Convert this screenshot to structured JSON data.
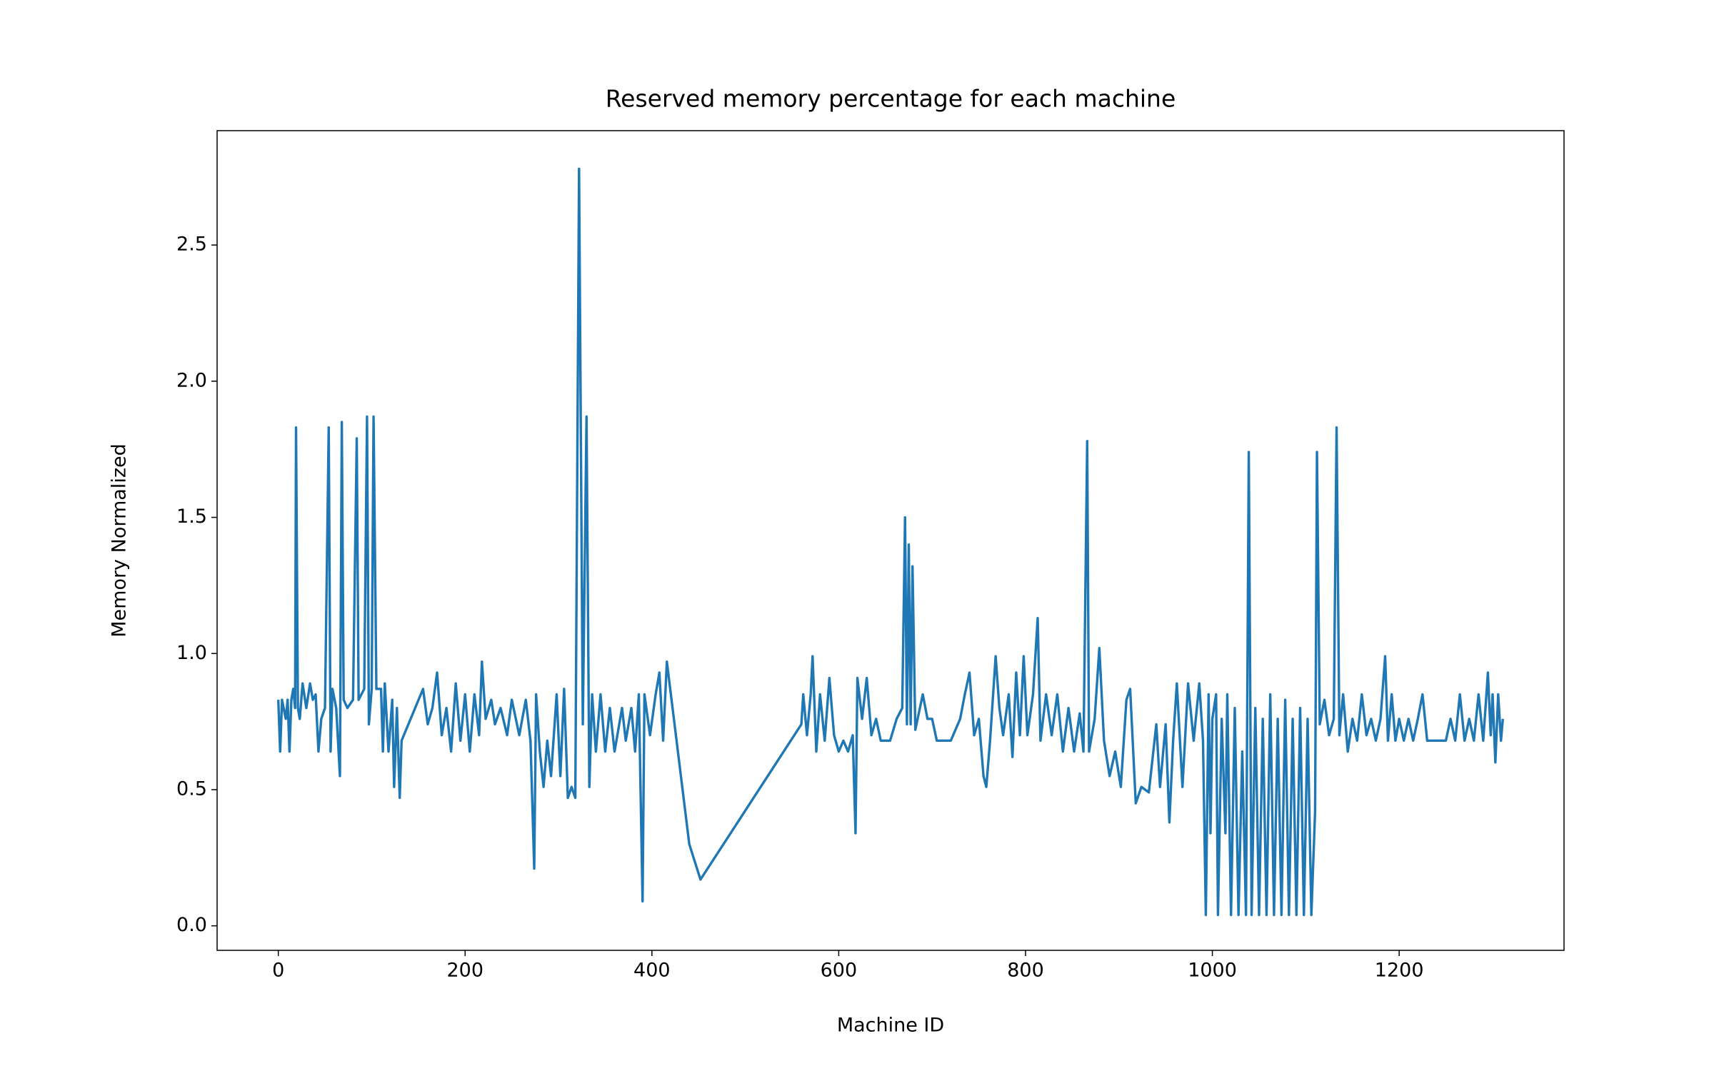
{
  "chart_data": {
    "type": "line",
    "title": "Reserved memory percentage for each machine",
    "x_label": "Machine ID",
    "y_label": "Memory Normalized",
    "color": "#1f77b4",
    "grid": false,
    "xlim": [
      -65.5,
      1376.5
    ],
    "ylim": [
      -0.09,
      2.92
    ],
    "xticks": [
      0,
      200,
      400,
      600,
      800,
      1000,
      1200
    ],
    "yticks": [
      {
        "value": 0,
        "label": "0.0"
      },
      0.5,
      {
        "value": 1,
        "label": "1.0"
      },
      1.5,
      {
        "value": 2,
        "label": "2.0"
      },
      2.5
    ],
    "x": [
      0,
      2,
      4,
      8,
      10,
      12,
      14,
      16,
      18,
      19,
      21,
      23,
      26,
      30,
      34,
      37,
      40,
      43,
      46,
      50,
      54,
      56,
      58,
      62,
      66,
      68,
      70,
      74,
      80,
      84,
      86,
      92,
      95,
      97,
      100,
      102,
      105,
      110,
      112,
      114,
      118,
      122,
      124,
      127,
      130,
      132,
      155,
      160,
      165,
      170,
      175,
      180,
      185,
      190,
      195,
      200,
      205,
      210,
      215,
      218,
      222,
      228,
      232,
      238,
      245,
      250,
      258,
      265,
      270,
      274,
      276,
      280,
      284,
      288,
      292,
      298,
      302,
      306,
      310,
      314,
      318,
      322,
      326,
      330,
      333,
      336,
      340,
      345,
      350,
      355,
      360,
      368,
      372,
      378,
      382,
      386,
      390,
      392,
      398,
      404,
      408,
      412,
      416,
      440,
      452,
      560,
      562,
      566,
      570,
      572,
      576,
      580,
      585,
      590,
      595,
      600,
      605,
      610,
      615,
      618,
      620,
      625,
      630,
      635,
      640,
      645,
      655,
      662,
      668,
      671,
      673,
      675,
      677,
      679,
      682,
      690,
      695,
      700,
      705,
      720,
      730,
      735,
      740,
      745,
      750,
      755,
      758,
      762,
      768,
      772,
      776,
      782,
      786,
      790,
      794,
      798,
      802,
      808,
      813,
      816,
      822,
      828,
      834,
      840,
      846,
      852,
      858,
      862,
      866,
      868,
      874,
      879,
      884,
      890,
      896,
      902,
      908,
      912,
      918,
      924,
      932,
      940,
      944,
      950,
      954,
      958,
      962,
      968,
      974,
      980,
      986,
      990,
      993,
      996,
      998,
      1000,
      1004,
      1006,
      1010,
      1014,
      1016,
      1020,
      1024,
      1028,
      1032,
      1036,
      1039,
      1042,
      1046,
      1050,
      1054,
      1058,
      1062,
      1066,
      1070,
      1074,
      1078,
      1082,
      1086,
      1090,
      1094,
      1098,
      1102,
      1106,
      1110,
      1112,
      1115,
      1120,
      1125,
      1130,
      1133,
      1136,
      1140,
      1145,
      1150,
      1155,
      1160,
      1165,
      1170,
      1175,
      1180,
      1185,
      1188,
      1192,
      1196,
      1200,
      1205,
      1210,
      1215,
      1220,
      1225,
      1230,
      1240,
      1250,
      1255,
      1260,
      1265,
      1270,
      1275,
      1280,
      1285,
      1290,
      1295,
      1298,
      1300,
      1303,
      1306,
      1309,
      1311
    ],
    "values": [
      0.83,
      0.64,
      0.83,
      0.76,
      0.83,
      0.64,
      0.83,
      0.87,
      0.8,
      1.83,
      0.8,
      0.76,
      0.89,
      0.8,
      0.89,
      0.83,
      0.85,
      0.64,
      0.76,
      0.8,
      1.83,
      0.64,
      0.87,
      0.8,
      0.55,
      1.85,
      0.83,
      0.8,
      0.83,
      1.79,
      0.83,
      0.87,
      1.87,
      0.74,
      0.87,
      1.87,
      0.87,
      0.87,
      0.64,
      0.89,
      0.64,
      0.83,
      0.51,
      0.8,
      0.47,
      0.68,
      0.87,
      0.74,
      0.8,
      0.93,
      0.7,
      0.8,
      0.64,
      0.89,
      0.68,
      0.85,
      0.64,
      0.85,
      0.7,
      0.97,
      0.76,
      0.83,
      0.74,
      0.8,
      0.7,
      0.83,
      0.7,
      0.83,
      0.68,
      0.21,
      0.85,
      0.64,
      0.51,
      0.68,
      0.55,
      0.85,
      0.55,
      0.87,
      0.47,
      0.51,
      0.47,
      2.78,
      0.74,
      1.87,
      0.51,
      0.85,
      0.64,
      0.85,
      0.64,
      0.8,
      0.64,
      0.8,
      0.68,
      0.8,
      0.64,
      0.85,
      0.09,
      0.85,
      0.7,
      0.85,
      0.93,
      0.68,
      0.97,
      0.3,
      0.17,
      0.74,
      0.85,
      0.7,
      0.85,
      0.99,
      0.64,
      0.85,
      0.68,
      0.91,
      0.7,
      0.64,
      0.68,
      0.64,
      0.7,
      0.34,
      0.91,
      0.76,
      0.91,
      0.7,
      0.76,
      0.68,
      0.68,
      0.76,
      0.8,
      1.5,
      0.74,
      1.4,
      0.74,
      1.32,
      0.72,
      0.85,
      0.76,
      0.76,
      0.68,
      0.68,
      0.76,
      0.85,
      0.93,
      0.7,
      0.76,
      0.55,
      0.51,
      0.68,
      0.99,
      0.8,
      0.7,
      0.85,
      0.62,
      0.93,
      0.7,
      0.99,
      0.7,
      0.85,
      1.13,
      0.68,
      0.85,
      0.7,
      0.85,
      0.64,
      0.8,
      0.64,
      0.78,
      0.64,
      1.78,
      0.64,
      0.76,
      1.02,
      0.68,
      0.55,
      0.64,
      0.51,
      0.83,
      0.87,
      0.45,
      0.51,
      0.49,
      0.74,
      0.51,
      0.74,
      0.38,
      0.68,
      0.89,
      0.51,
      0.89,
      0.68,
      0.89,
      0.68,
      0.04,
      0.85,
      0.34,
      0.76,
      0.85,
      0.04,
      0.76,
      0.34,
      0.85,
      0.04,
      0.8,
      0.04,
      0.64,
      0.04,
      1.74,
      0.04,
      0.8,
      0.04,
      0.76,
      0.04,
      0.85,
      0.04,
      0.76,
      0.04,
      0.83,
      0.04,
      0.76,
      0.04,
      0.8,
      0.04,
      0.76,
      0.04,
      0.42,
      1.74,
      0.74,
      0.83,
      0.7,
      0.76,
      1.83,
      0.7,
      0.85,
      0.64,
      0.76,
      0.68,
      0.85,
      0.7,
      0.76,
      0.68,
      0.76,
      0.99,
      0.68,
      0.85,
      0.68,
      0.76,
      0.68,
      0.76,
      0.68,
      0.76,
      0.85,
      0.68,
      0.68,
      0.68,
      0.76,
      0.68,
      0.85,
      0.68,
      0.76,
      0.68,
      0.85,
      0.68,
      0.93,
      0.7,
      0.85,
      0.6,
      0.85,
      0.68,
      0.76
    ]
  }
}
